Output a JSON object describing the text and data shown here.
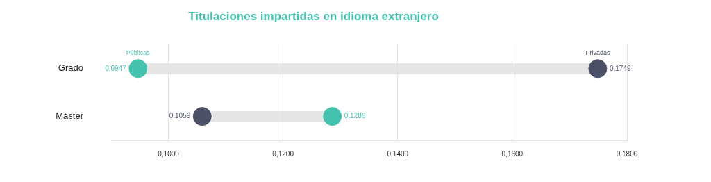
{
  "chart_data": {
    "type": "scatter",
    "title": "Titulaciones impartidas en idioma extranjero",
    "orientation": "horizontal",
    "categories": [
      "Grado",
      "Máster"
    ],
    "series": [
      {
        "name": "Públicas",
        "color": "#44c2ad",
        "values": [
          0.0947,
          0.1286
        ],
        "value_labels": [
          "0,0947",
          "0,1286"
        ]
      },
      {
        "name": "Privadas",
        "color": "#4b5066",
        "values": [
          0.1749,
          0.1059
        ],
        "value_labels": [
          "0,1749",
          "0,1059"
        ]
      }
    ],
    "xlim": [
      0.09,
      0.18
    ],
    "xticks": [
      {
        "value": 0.1,
        "label": "0,1000"
      },
      {
        "value": 0.12,
        "label": "0,1200"
      },
      {
        "value": 0.14,
        "label": "0,1400"
      },
      {
        "value": 0.16,
        "label": "0,1600"
      },
      {
        "value": 0.18,
        "label": "0,1800"
      }
    ],
    "grid": "x",
    "legend": false,
    "marker": "circle"
  }
}
